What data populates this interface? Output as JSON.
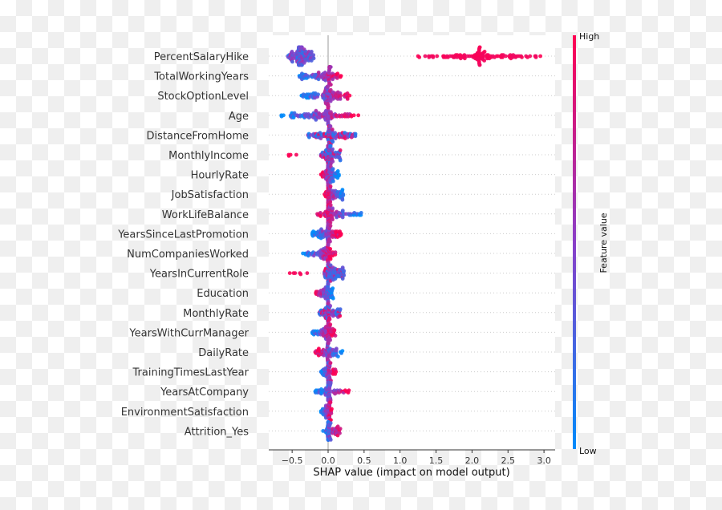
{
  "chart_data": {
    "type": "scatter",
    "subtype": "shap-beeswarm-summary",
    "title": "",
    "xlabel": "SHAP value (impact on model output)",
    "ylabel": "",
    "xlim": [
      -0.82,
      3.15
    ],
    "xticks": [
      -0.5,
      0.0,
      0.5,
      1.0,
      1.5,
      2.0,
      2.5,
      3.0
    ],
    "xtick_labels": [
      "−0.5",
      "0.0",
      "0.5",
      "1.0",
      "1.5",
      "2.0",
      "2.5",
      "3.0"
    ],
    "grid": false,
    "zero_line": true,
    "colorbar": {
      "label": "Feature value",
      "high_label": "High",
      "low_label": "Low",
      "high_color": "#ff0052",
      "low_color": "#008bfb",
      "placement": "right"
    },
    "features": [
      {
        "name": "PercentSalaryHike",
        "clusters": [
          {
            "range": [
              -0.56,
              -0.2
            ],
            "peak": -0.4,
            "n": 140,
            "color": "mixed-low"
          },
          {
            "range": [
              1.25,
              2.95
            ],
            "peak": 2.1,
            "n": 120,
            "color": "high"
          }
        ]
      },
      {
        "name": "TotalWorkingYears",
        "clusters": [
          {
            "range": [
              -0.4,
              0.18
            ],
            "peak": 0.02,
            "n": 110,
            "color": "low-negative"
          }
        ]
      },
      {
        "name": "StockOptionLevel",
        "clusters": [
          {
            "range": [
              -0.37,
              0.3
            ],
            "peak": -0.01,
            "n": 120,
            "color": "low-negative"
          }
        ]
      },
      {
        "name": "Age",
        "clusters": [
          {
            "range": [
              -0.65,
              0.42
            ],
            "peak": 0.0,
            "n": 120,
            "color": "low-negative"
          }
        ]
      },
      {
        "name": "DistanceFromHome",
        "clusters": [
          {
            "range": [
              -0.28,
              0.38
            ],
            "peak": 0.01,
            "n": 110,
            "color": "mixed"
          }
        ]
      },
      {
        "name": "MonthlyIncome",
        "clusters": [
          {
            "range": [
              -0.65,
              -0.42
            ],
            "peak": -0.6,
            "n": 4,
            "color": "high"
          },
          {
            "range": [
              -0.1,
              0.17
            ],
            "peak": 0.0,
            "n": 100,
            "color": "low-center"
          }
        ]
      },
      {
        "name": "HourlyRate",
        "clusters": [
          {
            "range": [
              -0.1,
              0.15
            ],
            "peak": 0.0,
            "n": 90,
            "color": "high-negative"
          }
        ]
      },
      {
        "name": "JobSatisfaction",
        "clusters": [
          {
            "range": [
              -0.05,
              0.21
            ],
            "peak": 0.0,
            "n": 80,
            "color": "high-negative"
          }
        ]
      },
      {
        "name": "WorkLifeBalance",
        "clusters": [
          {
            "range": [
              -0.15,
              0.46
            ],
            "peak": 0.0,
            "n": 100,
            "color": "high-negative"
          }
        ]
      },
      {
        "name": "YearsSinceLastPromotion",
        "clusters": [
          {
            "range": [
              -0.22,
              0.18
            ],
            "peak": 0.0,
            "n": 100,
            "color": "low-negative"
          }
        ]
      },
      {
        "name": "NumCompaniesWorked",
        "clusters": [
          {
            "range": [
              -0.35,
              0.1
            ],
            "peak": 0.0,
            "n": 90,
            "color": "low-negative"
          }
        ]
      },
      {
        "name": "YearsInCurrentRole",
        "clusters": [
          {
            "range": [
              -0.56,
              -0.28
            ],
            "peak": -0.4,
            "n": 6,
            "color": "high"
          },
          {
            "range": [
              -0.05,
              0.22
            ],
            "peak": 0.0,
            "n": 100,
            "color": "low-center"
          }
        ]
      },
      {
        "name": "Education",
        "clusters": [
          {
            "range": [
              -0.17,
              0.07
            ],
            "peak": 0.0,
            "n": 80,
            "color": "high-negative"
          }
        ]
      },
      {
        "name": "MonthlyRate",
        "clusters": [
          {
            "range": [
              -0.12,
              0.17
            ],
            "peak": 0.0,
            "n": 90,
            "color": "mixed"
          }
        ]
      },
      {
        "name": "YearsWithCurrManager",
        "clusters": [
          {
            "range": [
              -0.22,
              0.1
            ],
            "peak": 0.0,
            "n": 80,
            "color": "low-negative"
          }
        ]
      },
      {
        "name": "DailyRate",
        "clusters": [
          {
            "range": [
              -0.18,
              0.2
            ],
            "peak": 0.0,
            "n": 90,
            "color": "high-negative"
          }
        ]
      },
      {
        "name": "TrainingTimesLastYear",
        "clusters": [
          {
            "range": [
              -0.1,
              0.11
            ],
            "peak": 0.0,
            "n": 70,
            "color": "low-negative"
          }
        ]
      },
      {
        "name": "YearsAtCompany",
        "clusters": [
          {
            "range": [
              -0.18,
              0.29
            ],
            "peak": 0.0,
            "n": 80,
            "color": "low-negative"
          }
        ]
      },
      {
        "name": "EnvironmentSatisfaction",
        "clusters": [
          {
            "range": [
              -0.1,
              0.05
            ],
            "peak": 0.02,
            "n": 60,
            "color": "low-negative"
          }
        ]
      },
      {
        "name": "Attrition_Yes",
        "clusters": [
          {
            "range": [
              -0.07,
              0.17
            ],
            "peak": 0.0,
            "n": 70,
            "color": "low-negative"
          }
        ]
      }
    ]
  }
}
